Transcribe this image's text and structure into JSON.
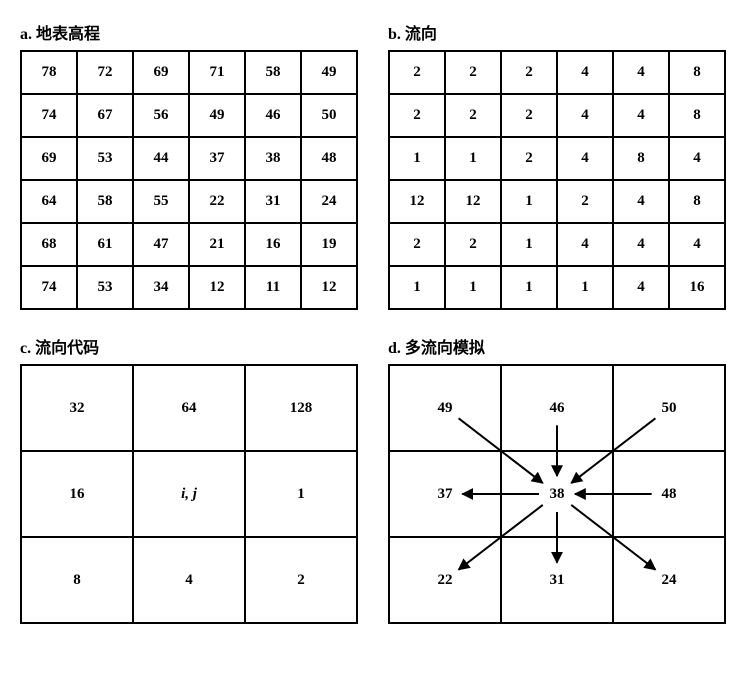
{
  "panel_a": {
    "title": "a. 地表高程",
    "rows": [
      [
        "78",
        "72",
        "69",
        "71",
        "58",
        "49"
      ],
      [
        "74",
        "67",
        "56",
        "49",
        "46",
        "50"
      ],
      [
        "69",
        "53",
        "44",
        "37",
        "38",
        "48"
      ],
      [
        "64",
        "58",
        "55",
        "22",
        "31",
        "24"
      ],
      [
        "68",
        "61",
        "47",
        "21",
        "16",
        "19"
      ],
      [
        "74",
        "53",
        "34",
        "12",
        "11",
        "12"
      ]
    ]
  },
  "panel_b": {
    "title": "b. 流向",
    "rows": [
      [
        "2",
        "2",
        "2",
        "4",
        "4",
        "8"
      ],
      [
        "2",
        "2",
        "2",
        "4",
        "4",
        "8"
      ],
      [
        "1",
        "1",
        "2",
        "4",
        "8",
        "4"
      ],
      [
        "12",
        "12",
        "1",
        "2",
        "4",
        "8"
      ],
      [
        "2",
        "2",
        "1",
        "4",
        "4",
        "4"
      ],
      [
        "1",
        "1",
        "1",
        "1",
        "4",
        "16"
      ]
    ]
  },
  "panel_c": {
    "title": "c. 流向代码",
    "rows": [
      [
        "32",
        "64",
        "128"
      ],
      [
        "16",
        "i, j",
        "1"
      ],
      [
        "8",
        "4",
        "2"
      ]
    ],
    "italic_cell": "1,1"
  },
  "panel_d": {
    "title": "d. 多流向模拟",
    "rows": [
      [
        "49",
        "46",
        "50"
      ],
      [
        "37",
        "38",
        "48"
      ],
      [
        "22",
        "31",
        "24"
      ]
    ],
    "arrows": [
      {
        "from": "0,0",
        "to": "1,1"
      },
      {
        "from": "0,1",
        "to": "1,1"
      },
      {
        "from": "0,2",
        "to": "1,1"
      },
      {
        "from": "1,2",
        "to": "1,1"
      },
      {
        "from": "1,1",
        "to": "1,0"
      },
      {
        "from": "1,1",
        "to": "2,0"
      },
      {
        "from": "1,1",
        "to": "2,1"
      },
      {
        "from": "1,1",
        "to": "2,2"
      }
    ],
    "arrow_color": "#000000",
    "arrow_width": 2
  },
  "style": {
    "border_color": "#000000",
    "background": "#ffffff",
    "cell_font_size_small": 15,
    "cell_font_size_large": 16,
    "title_font_size": 16,
    "grid6_cell_height": 43,
    "grid3_cell_height": 86
  }
}
